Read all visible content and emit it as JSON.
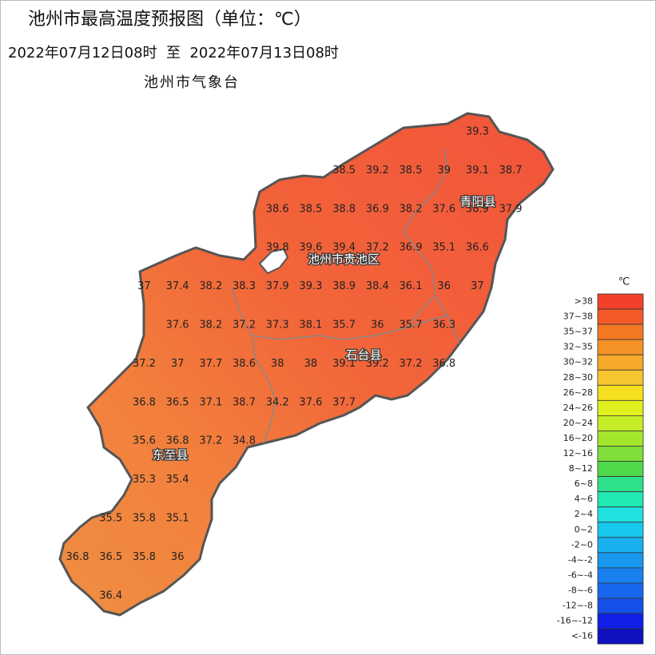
{
  "header": {
    "title": "池州市最高温度预报图（单位：℃）",
    "time_range": "2022年07月12日08时  至  2022年07月13日08时",
    "issuer": "池州市气象台"
  },
  "map": {
    "counties": [
      "青阳县",
      "池州市贵池区",
      "石台县",
      "东至县"
    ],
    "grid_values": [
      [
        null,
        null,
        null,
        null,
        null,
        null,
        null,
        null,
        null,
        null,
        null,
        null,
        39.3,
        null,
        null
      ],
      [
        null,
        null,
        null,
        null,
        null,
        null,
        null,
        null,
        38.5,
        39.2,
        38.5,
        39,
        39.1,
        38.7,
        null
      ],
      [
        null,
        null,
        null,
        null,
        null,
        null,
        38.6,
        38.5,
        38.8,
        36.9,
        38.2,
        37.6,
        38.9,
        37.9,
        null
      ],
      [
        null,
        null,
        null,
        null,
        null,
        null,
        39.8,
        39.6,
        39.4,
        37.2,
        36.9,
        35.1,
        36.6,
        null,
        null
      ],
      [
        null,
        null,
        37,
        37.4,
        38.2,
        38.3,
        37.9,
        39.3,
        38.9,
        38.4,
        36.1,
        36,
        37,
        null,
        null
      ],
      [
        null,
        null,
        null,
        37.6,
        38.2,
        37.2,
        37.3,
        38.1,
        35.7,
        36,
        35.7,
        36.3,
        null,
        null,
        null
      ],
      [
        null,
        null,
        37.2,
        37,
        37.7,
        38.6,
        38,
        38,
        39.1,
        39.2,
        37.2,
        36.8,
        null,
        null,
        null
      ],
      [
        null,
        null,
        36.8,
        36.5,
        37.1,
        38.7,
        34.2,
        37.6,
        37.7,
        null,
        null,
        null,
        null,
        null,
        null
      ],
      [
        null,
        null,
        35.6,
        36.8,
        37.2,
        34.8,
        null,
        null,
        null,
        null,
        null,
        null,
        null,
        null,
        null
      ],
      [
        null,
        null,
        35.3,
        35.4,
        null,
        null,
        null,
        null,
        null,
        null,
        null,
        null,
        null,
        null,
        null
      ],
      [
        null,
        35.5,
        35.8,
        35.1,
        null,
        null,
        null,
        null,
        null,
        null,
        null,
        null,
        null,
        null,
        null
      ],
      [
        36.8,
        36.5,
        35.8,
        36,
        null,
        null,
        null,
        null,
        null,
        null,
        null,
        null,
        null,
        null,
        null
      ],
      [
        null,
        36.4,
        null,
        null,
        null,
        null,
        null,
        null,
        null,
        null,
        null,
        null,
        null,
        null,
        null
      ]
    ]
  },
  "legend": {
    "unit": "℃",
    "items": [
      {
        "label": ">38",
        "color": "#f2402a"
      },
      {
        "label": "37~38",
        "color": "#f45a28"
      },
      {
        "label": "35~37",
        "color": "#f47822"
      },
      {
        "label": "32~35",
        "color": "#f59228"
      },
      {
        "label": "30~32",
        "color": "#f5aa2a"
      },
      {
        "label": "28~30",
        "color": "#f7c530"
      },
      {
        "label": "26~28",
        "color": "#f4e01e"
      },
      {
        "label": "24~26",
        "color": "#e0f01e"
      },
      {
        "label": "20~24",
        "color": "#c6ee28"
      },
      {
        "label": "16~20",
        "color": "#a4e62c"
      },
      {
        "label": "12~16",
        "color": "#7ede3a"
      },
      {
        "label": "8~12",
        "color": "#4fd84a"
      },
      {
        "label": "6~8",
        "color": "#2ee08a"
      },
      {
        "label": "4~6",
        "color": "#22e8b4"
      },
      {
        "label": "2~4",
        "color": "#20e0e0"
      },
      {
        "label": "0~2",
        "color": "#18c8ee"
      },
      {
        "label": "-2~0",
        "color": "#18b0ee"
      },
      {
        "label": "-4~-2",
        "color": "#1898ee"
      },
      {
        "label": "-6~-4",
        "color": "#1880ee"
      },
      {
        "label": "-8~-6",
        "color": "#1868ee"
      },
      {
        "label": "-12~-8",
        "color": "#1450e8"
      },
      {
        "label": "-16~-12",
        "color": "#1020e8"
      },
      {
        "label": "<-16",
        "color": "#1010c0"
      }
    ]
  }
}
